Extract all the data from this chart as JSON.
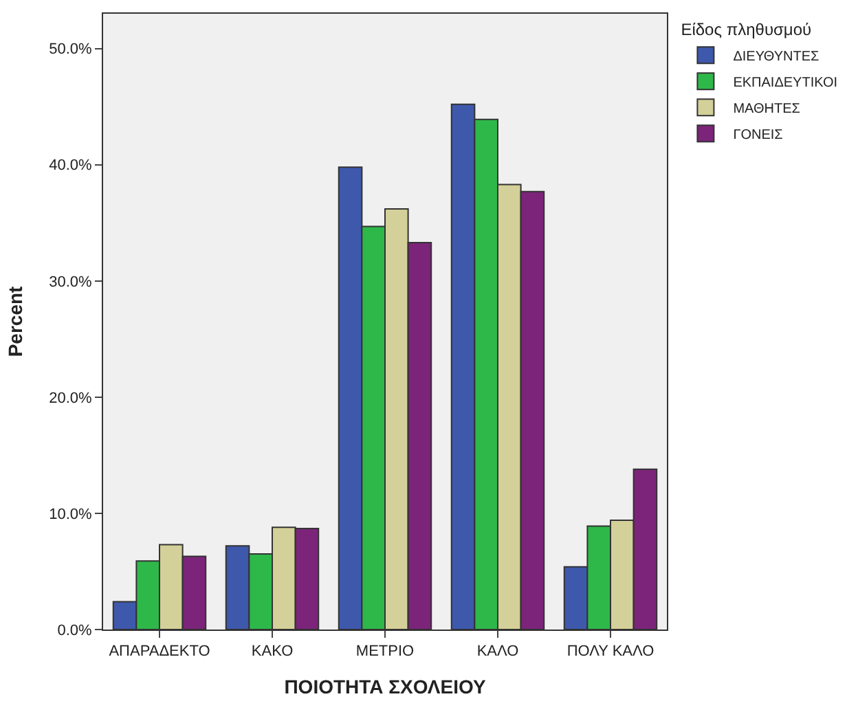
{
  "chart_data": {
    "type": "bar",
    "xlabel": "ΠΟΙΟΤΗΤΑ ΣΧΟΛΕΙΟΥ",
    "ylabel": "Percent",
    "legend_title": "Είδος πληθυσμού",
    "categories": [
      "ΑΠΑΡΑΔΕΚΤΟ",
      "ΚΑΚΟ",
      "ΜΕΤΡΙΟ",
      "ΚΑΛΟ",
      "ΠΟΛΥ ΚΑΛΟ"
    ],
    "series": [
      {
        "name": "ΔΙΕΥΘΥΝΤΕΣ",
        "color": "#3e58ac",
        "values": [
          2.4,
          7.2,
          39.8,
          45.2,
          5.4
        ]
      },
      {
        "name": "ΕΚΠΑΙΔΕΥΤΙΚΟΙ",
        "color": "#2eb84a",
        "values": [
          5.9,
          6.5,
          34.7,
          43.9,
          8.9
        ]
      },
      {
        "name": "ΜΑΘΗΤΕΣ",
        "color": "#d4d099",
        "values": [
          7.3,
          8.8,
          36.2,
          38.3,
          9.4
        ]
      },
      {
        "name": "ΓΟΝΕΙΣ",
        "color": "#7b2479",
        "values": [
          6.3,
          8.7,
          33.3,
          37.7,
          13.8
        ]
      }
    ],
    "ylim": [
      0,
      53
    ],
    "yticks": [
      {
        "value": 0,
        "label": "0.0%"
      },
      {
        "value": 10,
        "label": "10.0%"
      },
      {
        "value": 20,
        "label": "20.0%"
      },
      {
        "value": 30,
        "label": "30.0%"
      },
      {
        "value": 40,
        "label": "40.0%"
      },
      {
        "value": 50,
        "label": "50.0%"
      }
    ],
    "grid": false,
    "legend": "top right"
  }
}
